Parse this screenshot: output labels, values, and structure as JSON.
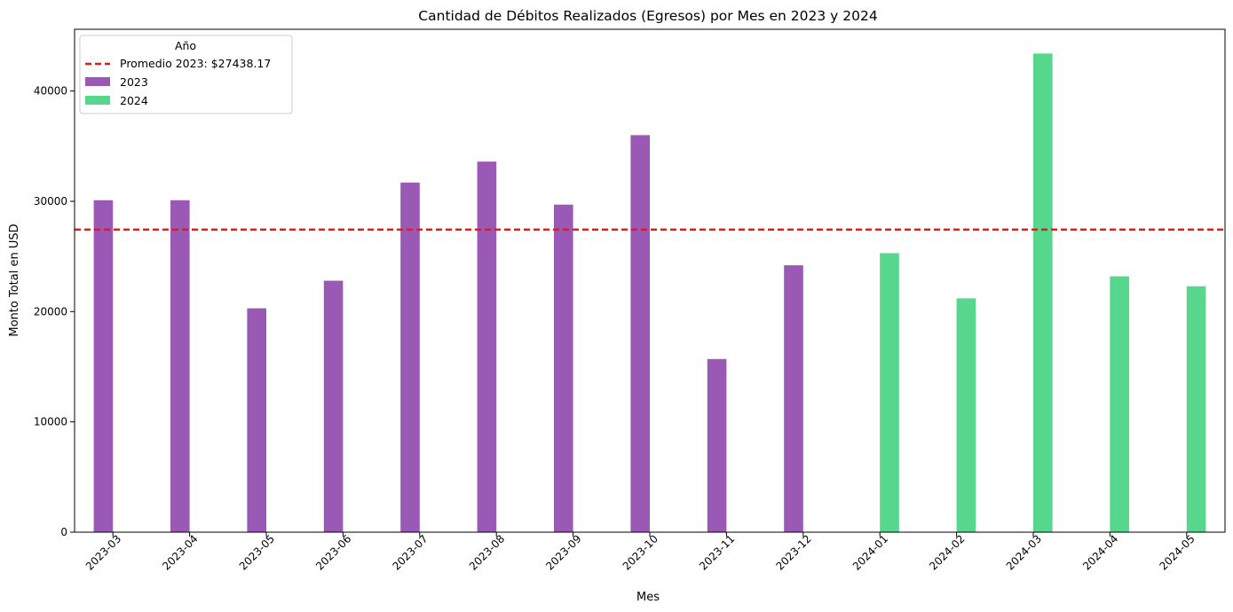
{
  "chart_data": {
    "type": "bar",
    "title": "Cantidad de Débitos Realizados (Egresos) por Mes en 2023 y 2024",
    "xlabel": "Mes",
    "ylabel": "Monto Total en USD",
    "categories": [
      "2023-03",
      "2023-04",
      "2023-05",
      "2023-06",
      "2023-07",
      "2023-08",
      "2023-09",
      "2023-10",
      "2023-11",
      "2023-12",
      "2024-01",
      "2024-02",
      "2024-03",
      "2024-04",
      "2024-05"
    ],
    "series": [
      {
        "name": "2023",
        "color": "#9b59b6",
        "values": [
          30100,
          30100,
          20300,
          22800,
          31700,
          33600,
          29700,
          36000,
          15700,
          24200,
          null,
          null,
          null,
          null,
          null
        ]
      },
      {
        "name": "2024",
        "color": "#57d68d",
        "values": [
          null,
          null,
          null,
          null,
          null,
          null,
          null,
          null,
          null,
          null,
          25300,
          21200,
          43400,
          23200,
          22300
        ]
      }
    ],
    "reference_line": {
      "label": "Promedio 2023: $27438.17",
      "value": 27438.17,
      "color": "#e31a1c",
      "style": "dashed"
    },
    "legend_title": "Año",
    "legend_position": "top-left",
    "ylim": [
      0,
      45600
    ],
    "yticks": [
      0,
      10000,
      20000,
      30000,
      40000
    ],
    "grid": false
  }
}
